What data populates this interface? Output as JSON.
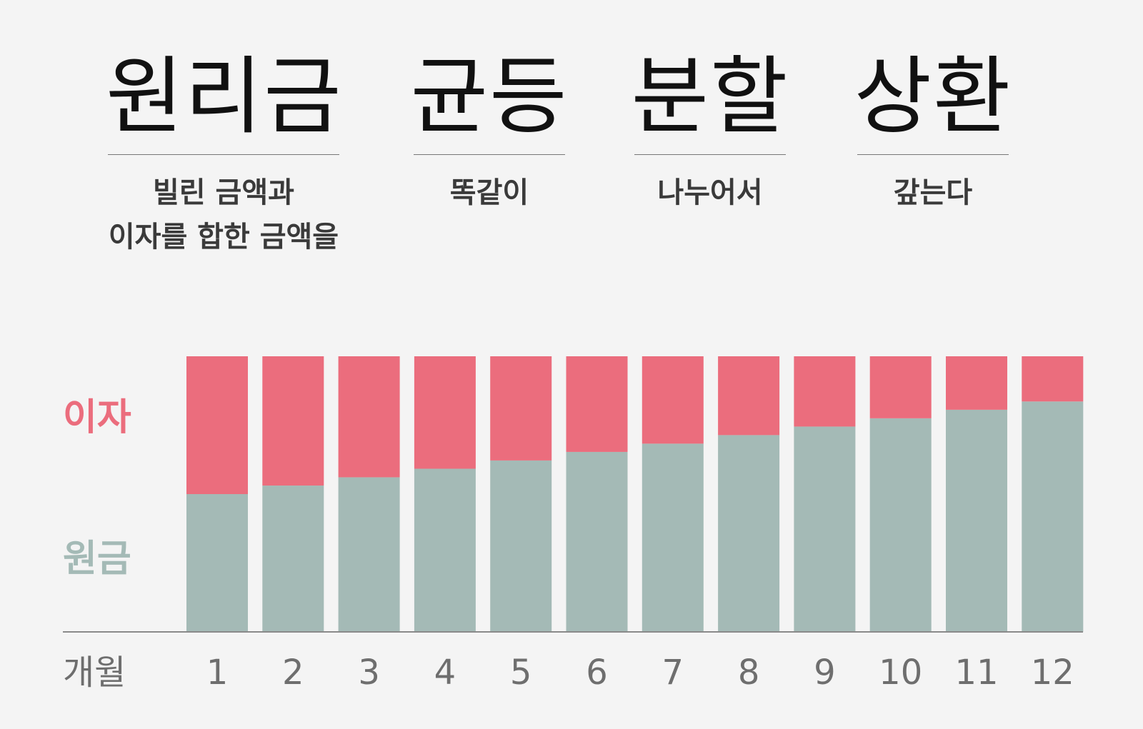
{
  "terms": [
    {
      "word": "원리금",
      "meaning": "빌린 금액과\n이자를 합한 금액을"
    },
    {
      "word": "균등",
      "meaning": "똑같이"
    },
    {
      "word": "분할",
      "meaning": "나누어서"
    },
    {
      "word": "상환",
      "meaning": "갚는다"
    }
  ],
  "colors": {
    "interest": "#eb6d7d",
    "principal": "#a4bab6",
    "axis_text": "#6e6e6e",
    "title_text": "#111111"
  },
  "chart_data": {
    "type": "bar",
    "stacked": true,
    "x_axis_label": "개월",
    "categories": [
      "1",
      "2",
      "3",
      "4",
      "5",
      "6",
      "7",
      "8",
      "9",
      "10",
      "11",
      "12"
    ],
    "series": [
      {
        "name": "원금",
        "color": "#a4bab6",
        "values": [
          50,
          53.1,
          56.1,
          59.2,
          62.2,
          65.3,
          68.3,
          71.4,
          74.5,
          77.5,
          80.6,
          83.6
        ]
      },
      {
        "name": "이자",
        "color": "#eb6d7d",
        "values": [
          50,
          46.9,
          43.9,
          40.8,
          37.8,
          34.7,
          31.7,
          28.6,
          25.5,
          22.5,
          19.4,
          16.4
        ]
      }
    ],
    "ylim": [
      0,
      100
    ],
    "y_axis_shown": false,
    "grid": false
  }
}
